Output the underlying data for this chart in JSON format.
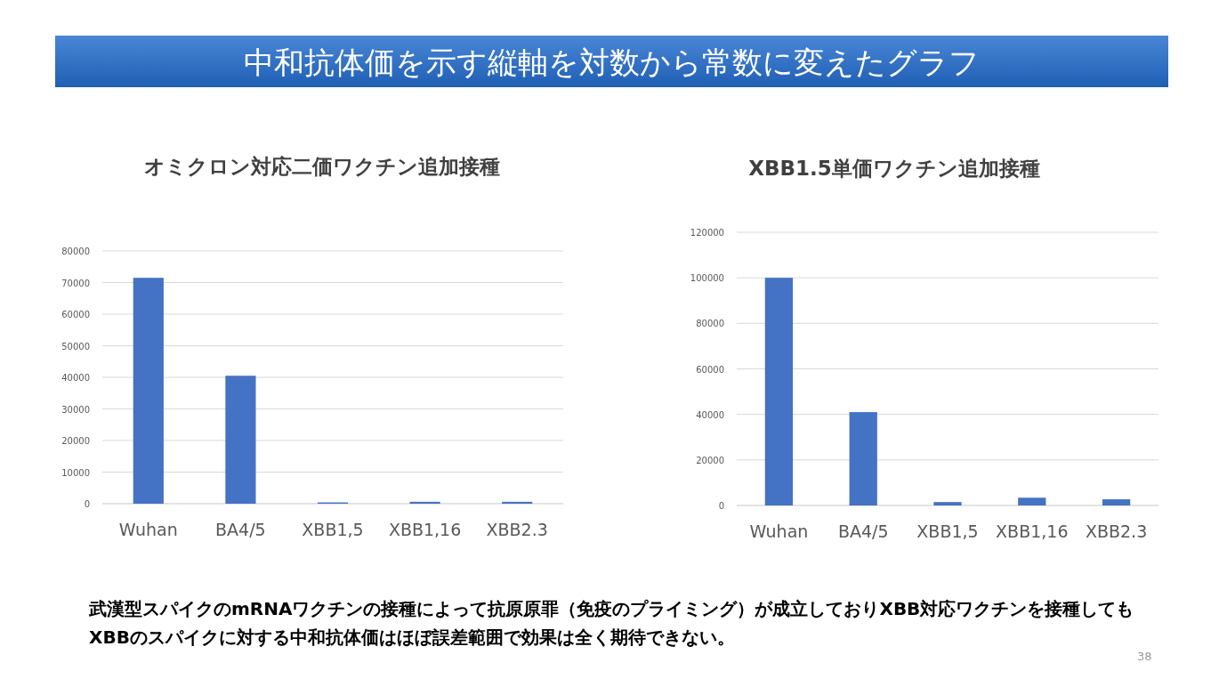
{
  "chart_data": [
    {
      "type": "other",
      "title": "中和抗体価を示す縦軸を対数から常数に変えたグラフ",
      "annotations": [
        "武漢型スパイクのmRNAワクチンの接種によって抗原原罪（免疫のプライミング）が成立しておりXBB対応ワクチンを接種してもXBBのスパイクに対する中和抗体価はほぼ誤差範囲で効果は全く期待できない。",
        "38"
      ]
    },
    {
      "type": "bar",
      "title": "オミクロン対応二価ワクチン追加接種",
      "categories": [
        "Wuhan",
        "BA4/5",
        "XBB1,5",
        "XBB1,16",
        "XBB2.3"
      ],
      "values": [
        71500,
        40500,
        400,
        600,
        600
      ],
      "color": "#4472c4",
      "ylim": [
        0,
        80000
      ],
      "yticks": [
        0,
        10000,
        20000,
        30000,
        40000,
        50000,
        60000,
        70000,
        80000
      ],
      "grid": "y"
    },
    {
      "type": "bar",
      "title": "XBB1.5単価ワクチン追加接種",
      "categories": [
        "Wuhan",
        "BA4/5",
        "XBB1,5",
        "XBB1,16",
        "XBB2.3"
      ],
      "values": [
        100000,
        41000,
        1500,
        3400,
        2700
      ],
      "color": "#4472c4",
      "ylim": [
        0,
        120000
      ],
      "yticks": [
        0,
        20000,
        40000,
        60000,
        80000,
        100000,
        120000
      ],
      "grid": "y"
    }
  ]
}
